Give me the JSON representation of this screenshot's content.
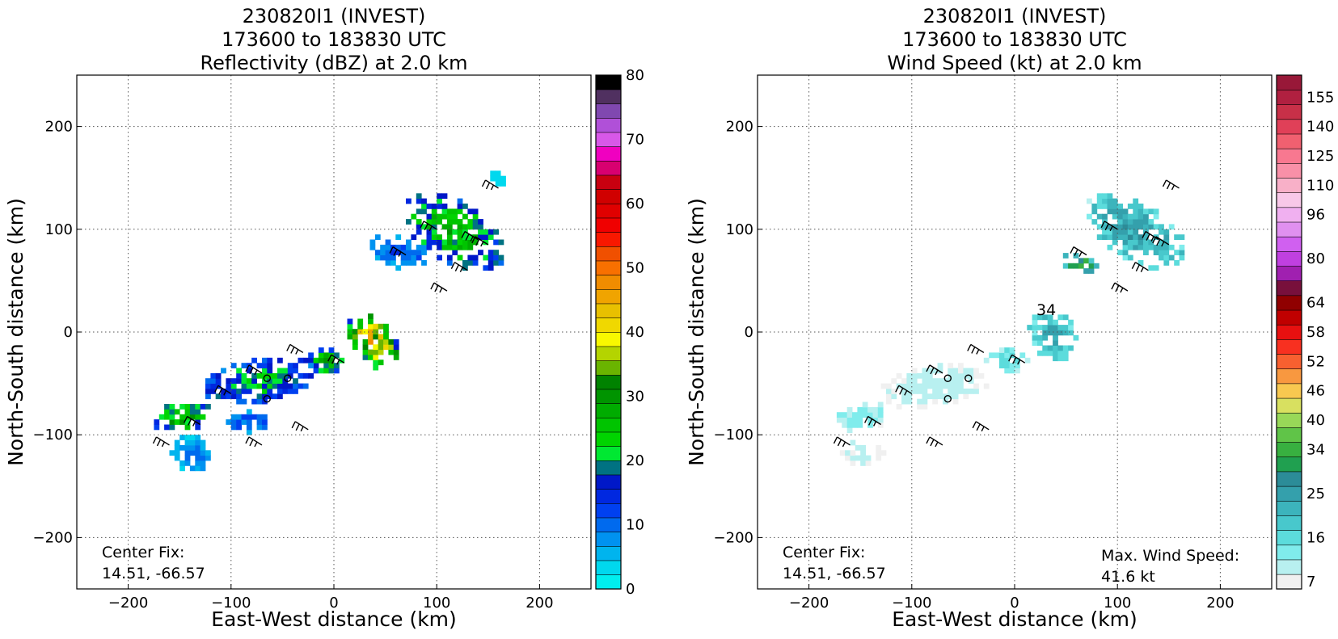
{
  "chart_data": [
    {
      "type": "heatmap",
      "title": [
        "230820I1 (INVEST)",
        "173600 to 183830 UTC",
        "Reflectivity (dBZ) at 2.0 km"
      ],
      "xlabel": "East-West distance (km)",
      "ylabel": "North-South distance (km)",
      "xlim": [
        -250,
        250
      ],
      "ylim": [
        -250,
        250
      ],
      "xticks": [
        "−200",
        "−100",
        "0",
        "100",
        "200"
      ],
      "yticks": [
        "200",
        "100",
        "0",
        "−100",
        "−200"
      ],
      "grid": true,
      "annotation": [
        "Center Fix:",
        "14.51, -66.57"
      ],
      "colorbar": {
        "min": 0,
        "max": 80,
        "ticks": [
          "0",
          "10",
          "20",
          "30",
          "40",
          "50",
          "60",
          "70",
          "80"
        ],
        "colors": [
          "#00eeee",
          "#00d8ee",
          "#00b4ee",
          "#0092f0",
          "#006aee",
          "#0040f0",
          "#0028e0",
          "#0018c8",
          "#007282",
          "#00e832",
          "#00d400",
          "#00c400",
          "#00ac00",
          "#009400",
          "#008200",
          "#6ab400",
          "#b4d400",
          "#f8f800",
          "#f0d800",
          "#e8c000",
          "#f0a400",
          "#f08c00",
          "#f87000",
          "#f05000",
          "#f81800",
          "#f00000",
          "#e00000",
          "#d00000",
          "#c80010",
          "#d80070",
          "#f000c0",
          "#d858e8",
          "#b050d8",
          "#8048b0",
          "#503060",
          "#000000"
        ]
      },
      "clusters": [
        {
          "x": 115,
          "y": 95,
          "rx": 55,
          "ry": 30,
          "angle": -30,
          "value": 22
        },
        {
          "x": 60,
          "y": 75,
          "rx": 30,
          "ry": 15,
          "angle": -20,
          "value": 10
        },
        {
          "x": 35,
          "y": -10,
          "rx": 20,
          "ry": 32,
          "angle": 35,
          "value": 34
        },
        {
          "x": -10,
          "y": -30,
          "rx": 20,
          "ry": 12,
          "angle": 0,
          "value": 22
        },
        {
          "x": -75,
          "y": -50,
          "rx": 55,
          "ry": 22,
          "angle": 10,
          "value": 18
        },
        {
          "x": -150,
          "y": -85,
          "rx": 30,
          "ry": 14,
          "angle": 10,
          "value": 24
        },
        {
          "x": -140,
          "y": -120,
          "rx": 20,
          "ry": 18,
          "angle": 0,
          "value": 8
        },
        {
          "x": -85,
          "y": -90,
          "rx": 25,
          "ry": 10,
          "angle": 0,
          "value": 10
        },
        {
          "x": 155,
          "y": 145,
          "rx": 8,
          "ry": 8,
          "angle": 0,
          "value": 4
        }
      ]
    },
    {
      "type": "heatmap",
      "title": [
        "230820I1 (INVEST)",
        "173600 to 183830 UTC",
        "Wind Speed (kt) at 2.0 km"
      ],
      "xlabel": "East-West distance (km)",
      "ylabel": "North-South distance (km)",
      "xlim": [
        -250,
        250
      ],
      "ylim": [
        -250,
        250
      ],
      "xticks": [
        "−200",
        "−100",
        "0",
        "100",
        "200"
      ],
      "yticks": [
        "200",
        "100",
        "0",
        "−100",
        "−200"
      ],
      "grid": true,
      "annotation": [
        "Center Fix:",
        "14.51, -66.57"
      ],
      "annotation2": [
        "Max. Wind Speed:",
        "41.6 kt"
      ],
      "contour_label": "34",
      "colorbar": {
        "min": 0,
        "max": 160,
        "ticks": [
          "7",
          "16",
          "25",
          "34",
          "40",
          "46",
          "52",
          "58",
          "64",
          "80",
          "96",
          "110",
          "125",
          "140",
          "155"
        ],
        "colors": [
          "#f0f0f0",
          "#b8f0f0",
          "#80ecec",
          "#5cdcdc",
          "#48c8cc",
          "#3cb4bc",
          "#34a0ac",
          "#2c8c98",
          "#20a050",
          "#38b040",
          "#60c448",
          "#98d858",
          "#d8e060",
          "#f8c850",
          "#f89840",
          "#f86030",
          "#f83020",
          "#e81010",
          "#c00000",
          "#900000",
          "#78103c",
          "#a020b0",
          "#c040e0",
          "#d060f0",
          "#e090f0",
          "#f0b0f0",
          "#f8c8e8",
          "#f8b0c8",
          "#f890a8",
          "#f87890",
          "#f06070",
          "#e04058",
          "#c83048",
          "#b02040",
          "#981838"
        ]
      },
      "clusters": [
        {
          "x": 115,
          "y": 95,
          "rx": 55,
          "ry": 28,
          "angle": -30,
          "value": 25
        },
        {
          "x": 60,
          "y": 65,
          "rx": 18,
          "ry": 10,
          "angle": -20,
          "value": 36
        },
        {
          "x": 35,
          "y": -5,
          "rx": 22,
          "ry": 28,
          "angle": 35,
          "value": 22
        },
        {
          "x": -10,
          "y": -30,
          "rx": 20,
          "ry": 12,
          "angle": 0,
          "value": 14
        },
        {
          "x": -80,
          "y": -55,
          "rx": 55,
          "ry": 20,
          "angle": 10,
          "value": 6
        },
        {
          "x": -150,
          "y": -85,
          "rx": 28,
          "ry": 14,
          "angle": 10,
          "value": 10
        },
        {
          "x": -150,
          "y": -120,
          "rx": 20,
          "ry": 14,
          "angle": 0,
          "value": 5
        }
      ]
    }
  ]
}
